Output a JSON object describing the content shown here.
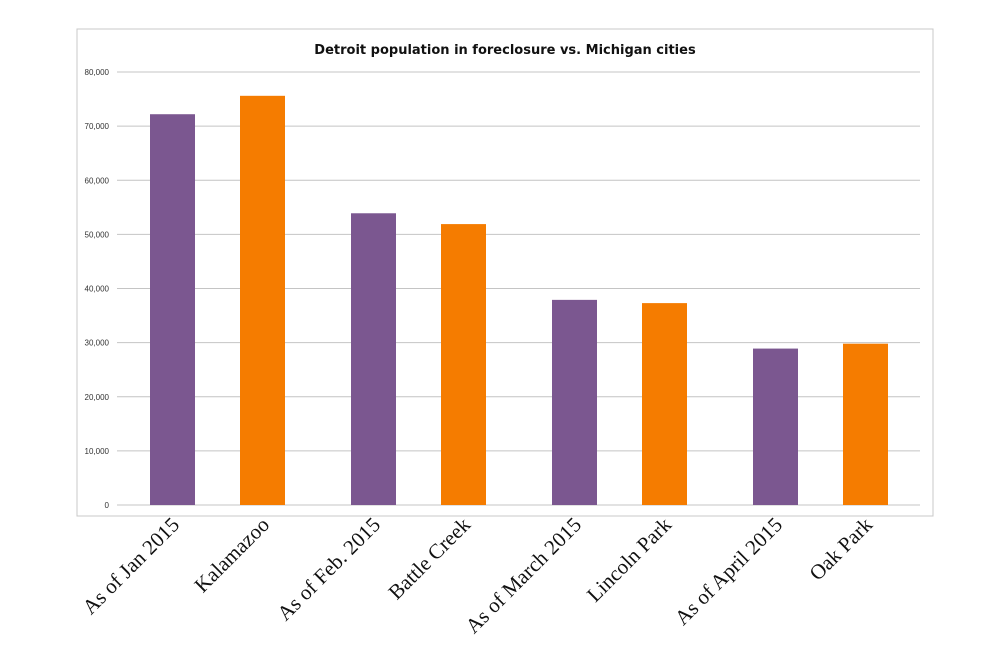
{
  "chart_data": {
    "type": "bar",
    "title": "Detroit population in foreclosure vs. Michigan cities",
    "xlabel": "",
    "ylabel": "",
    "categories": [
      "As of Jan 2015",
      "Kalamazoo",
      "As of Feb. 2015",
      "Battle Creek",
      "As of March 2015",
      "Lincoln Park",
      "As of April 2015",
      "Oak Park"
    ],
    "values": [
      72200,
      75600,
      53900,
      51900,
      37900,
      37300,
      28900,
      29800
    ],
    "bar_colors": [
      "#7b5790",
      "#f57c00",
      "#7b5790",
      "#f57c00",
      "#7b5790",
      "#f57c00",
      "#7b5790",
      "#f57c00"
    ],
    "ylim": [
      0,
      80000
    ],
    "yticks": [
      "0",
      "10,000",
      "20,000",
      "30,000",
      "40,000",
      "50,000",
      "60,000",
      "70,000",
      "80,000"
    ],
    "grid": true,
    "legend": "none"
  }
}
